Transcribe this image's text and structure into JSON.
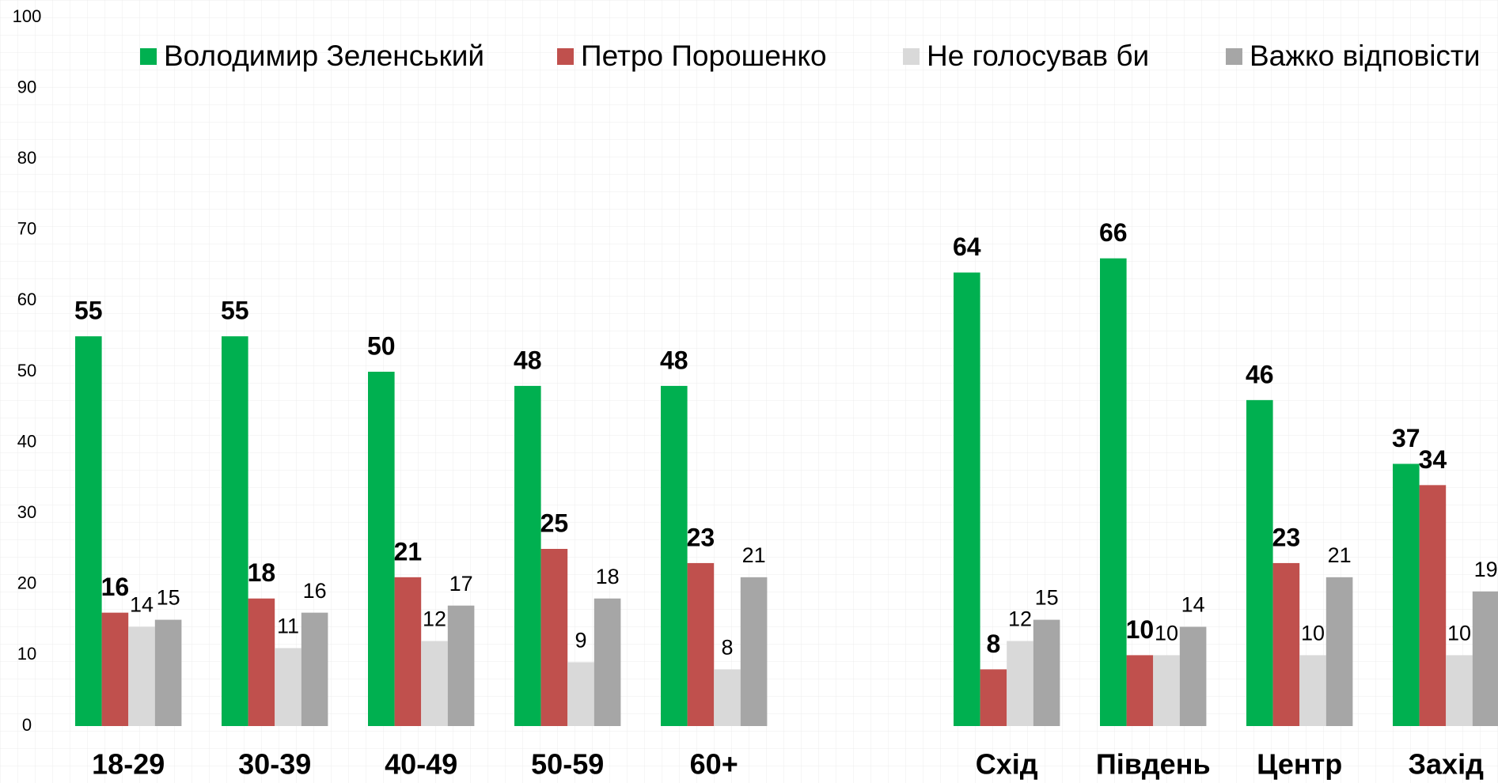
{
  "chart_data": {
    "type": "bar",
    "categories": [
      "18-29",
      "30-39",
      "40-49",
      "50-59",
      "60+",
      "Схід",
      "Південь",
      "Центр",
      "Захід"
    ],
    "series": [
      {
        "name": "Володимир Зеленський",
        "color": "#00b050",
        "values": [
          55,
          55,
          50,
          48,
          48,
          64,
          66,
          46,
          37
        ]
      },
      {
        "name": "Петро Порошенко",
        "color": "#c0504d",
        "values": [
          16,
          18,
          21,
          25,
          23,
          8,
          10,
          23,
          34
        ]
      },
      {
        "name": "Не голосував би",
        "color": "#d9d9d9",
        "values": [
          14,
          11,
          12,
          9,
          8,
          12,
          10,
          10,
          10
        ]
      },
      {
        "name": "Важко відповісти",
        "color": "#a6a6a6",
        "values": [
          15,
          16,
          17,
          18,
          21,
          15,
          14,
          21,
          19
        ]
      }
    ],
    "ylim": [
      0,
      100
    ],
    "yticks": [
      0,
      10,
      20,
      30,
      40,
      50,
      60,
      70,
      80,
      90,
      100
    ],
    "legend": "top"
  }
}
